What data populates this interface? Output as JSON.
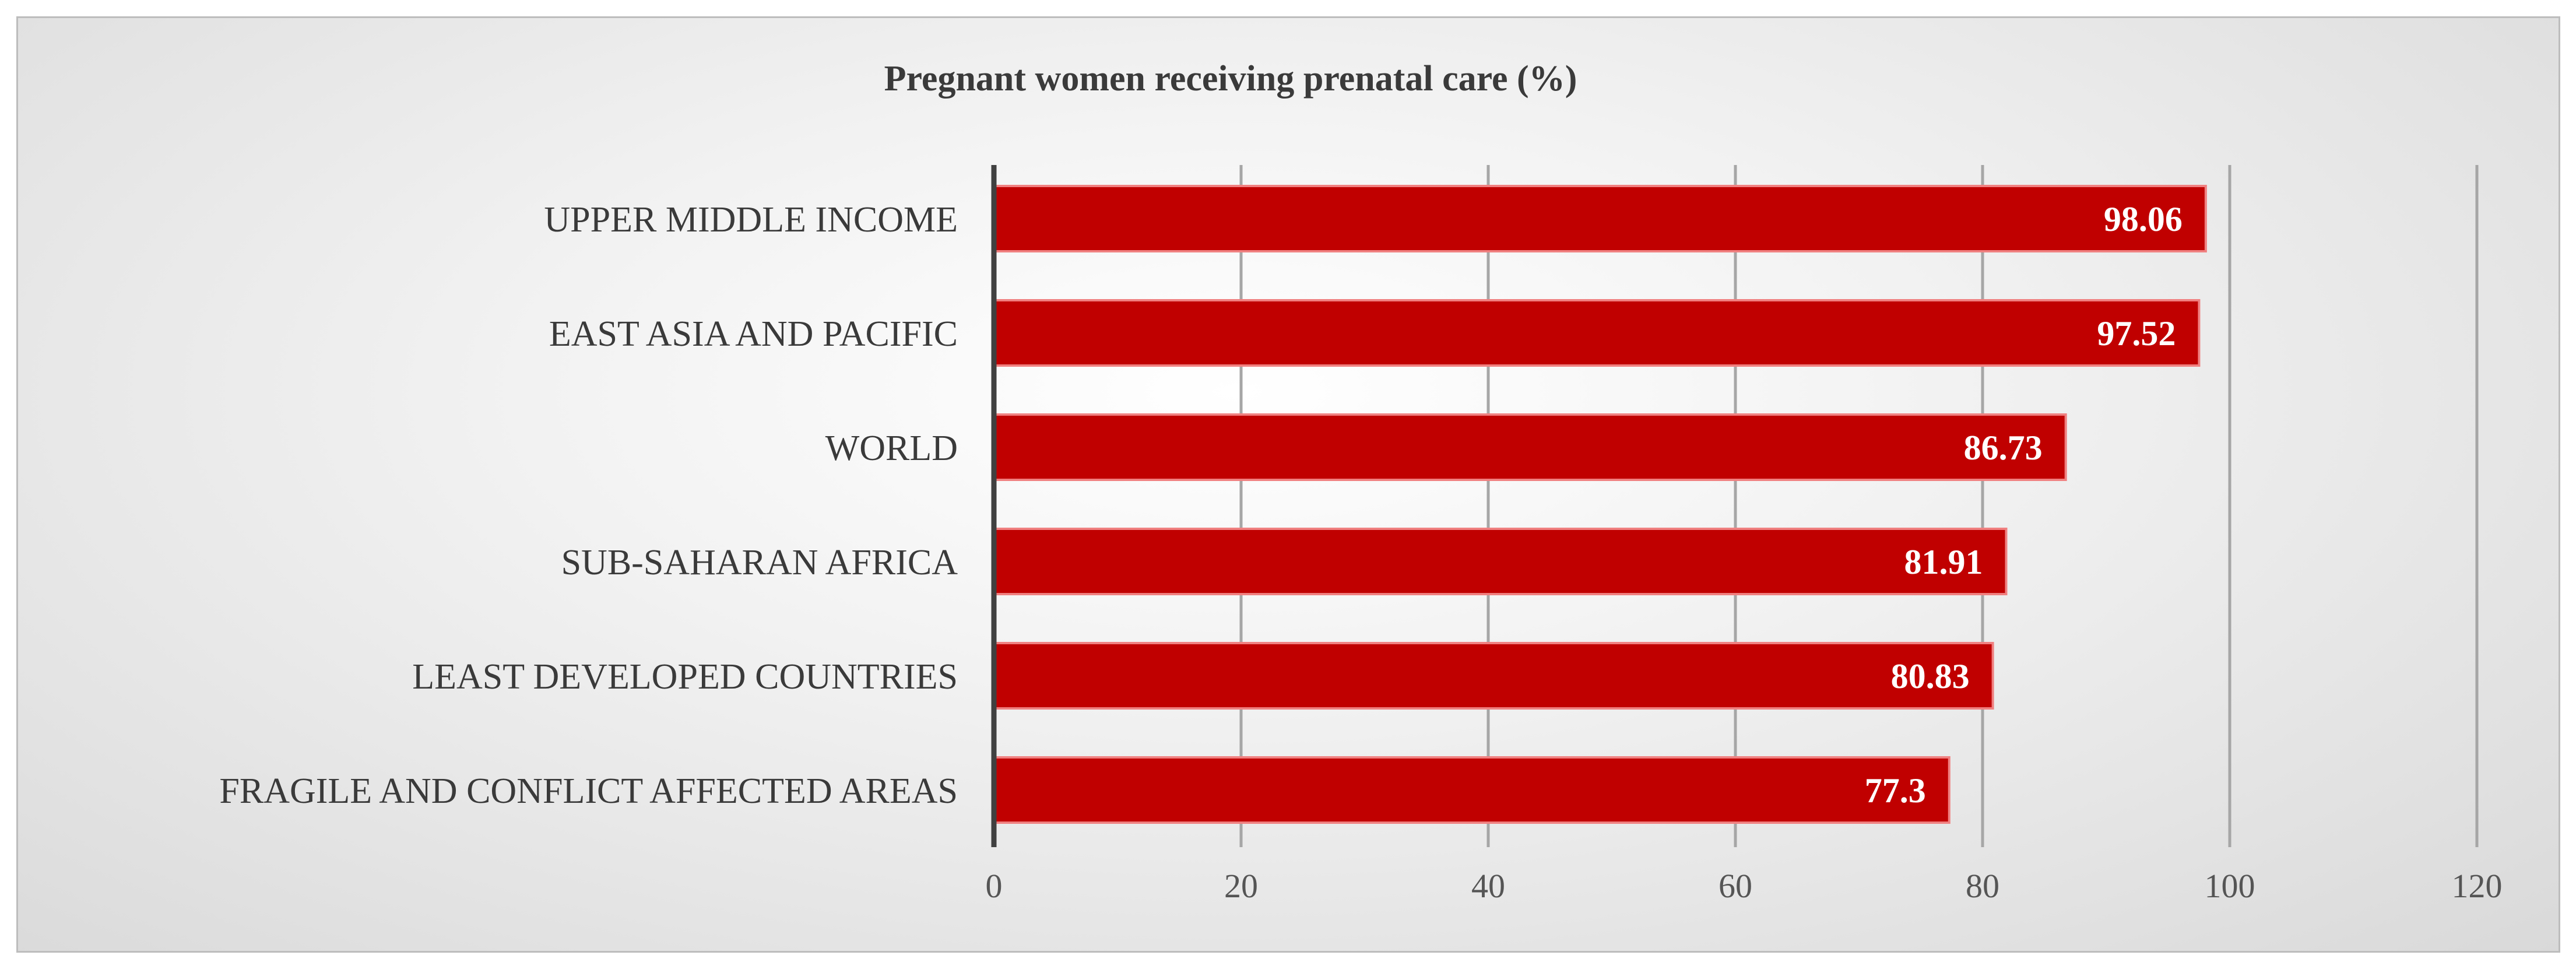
{
  "chart_data": {
    "type": "bar",
    "orientation": "horizontal",
    "title": "Pregnant women receiving prenatal care (%)",
    "xlabel": "",
    "ylabel": "",
    "categories": [
      "UPPER MIDDLE INCOME",
      "EAST ASIA AND PACIFIC",
      "WORLD",
      "SUB-SAHARAN AFRICA",
      "LEAST DEVELOPED COUNTRIES",
      "FRAGILE AND  CONFLICT AFFECTED AREAS"
    ],
    "values": [
      98.06,
      97.52,
      86.73,
      81.91,
      80.83,
      77.3
    ],
    "value_labels": [
      "98.06",
      "97.52",
      "86.73",
      "81.91",
      "80.83",
      "77.3"
    ],
    "xlim": [
      0,
      120
    ],
    "xticks": [
      0,
      20,
      40,
      60,
      80,
      100,
      120
    ],
    "grid": "vertical",
    "legend": "none",
    "colors": {
      "bar_fill": "#c00000",
      "bar_edge": "#f08080",
      "gridline": "#a6a6a6",
      "axis_line": "#404040"
    }
  }
}
